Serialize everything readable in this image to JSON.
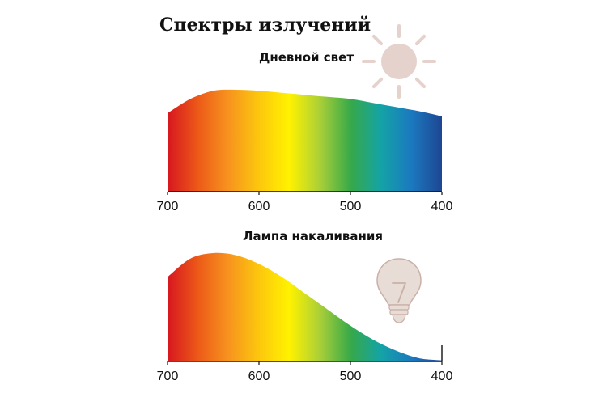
{
  "title": "Спектры излучений",
  "colors": {
    "spectrum": [
      "#d7161f",
      "#ec5a18",
      "#f7931e",
      "#fcc70d",
      "#fff200",
      "#a9cf38",
      "#37a949",
      "#14a3a6",
      "#1b79bf",
      "#1e4692"
    ],
    "sun": "#e5d2cc",
    "bulb": "#e8dcd6",
    "bulb_stroke": "#c9b0a7"
  },
  "chart_data": [
    {
      "type": "area",
      "title": "Дневной свет",
      "icon": "sun-icon",
      "xlabel": "",
      "ylabel": "",
      "x_ticks": [
        700,
        600,
        500,
        400
      ],
      "xlim": [
        700,
        400
      ],
      "ylim": [
        0,
        1
      ],
      "x": [
        700,
        675,
        650,
        625,
        600,
        575,
        550,
        525,
        500,
        475,
        450,
        425,
        400
      ],
      "values": [
        0.77,
        0.91,
        0.99,
        1.0,
        0.99,
        0.97,
        0.95,
        0.93,
        0.91,
        0.87,
        0.83,
        0.79,
        0.74
      ]
    },
    {
      "type": "area",
      "title": "Лампа накаливания",
      "icon": "light-bulb-icon",
      "xlabel": "",
      "ylabel": "",
      "x_ticks": [
        700,
        600,
        500,
        400
      ],
      "xlim": [
        700,
        400
      ],
      "ylim": [
        0,
        1
      ],
      "x": [
        700,
        675,
        650,
        625,
        600,
        575,
        550,
        525,
        500,
        475,
        450,
        425,
        400
      ],
      "values": [
        0.78,
        0.95,
        1.0,
        0.98,
        0.9,
        0.78,
        0.63,
        0.48,
        0.33,
        0.2,
        0.1,
        0.03,
        0.01
      ]
    }
  ]
}
